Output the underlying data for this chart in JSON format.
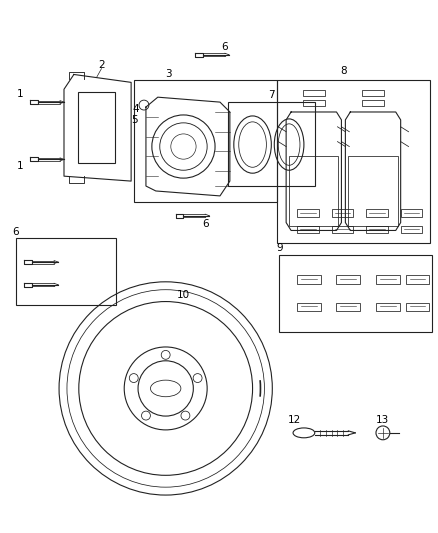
{
  "bg_color": "#ffffff",
  "fig_width": 4.38,
  "fig_height": 5.33,
  "dpi": 100,
  "lc": "#222222",
  "lw": 0.8,
  "label_fs": 7.5
}
